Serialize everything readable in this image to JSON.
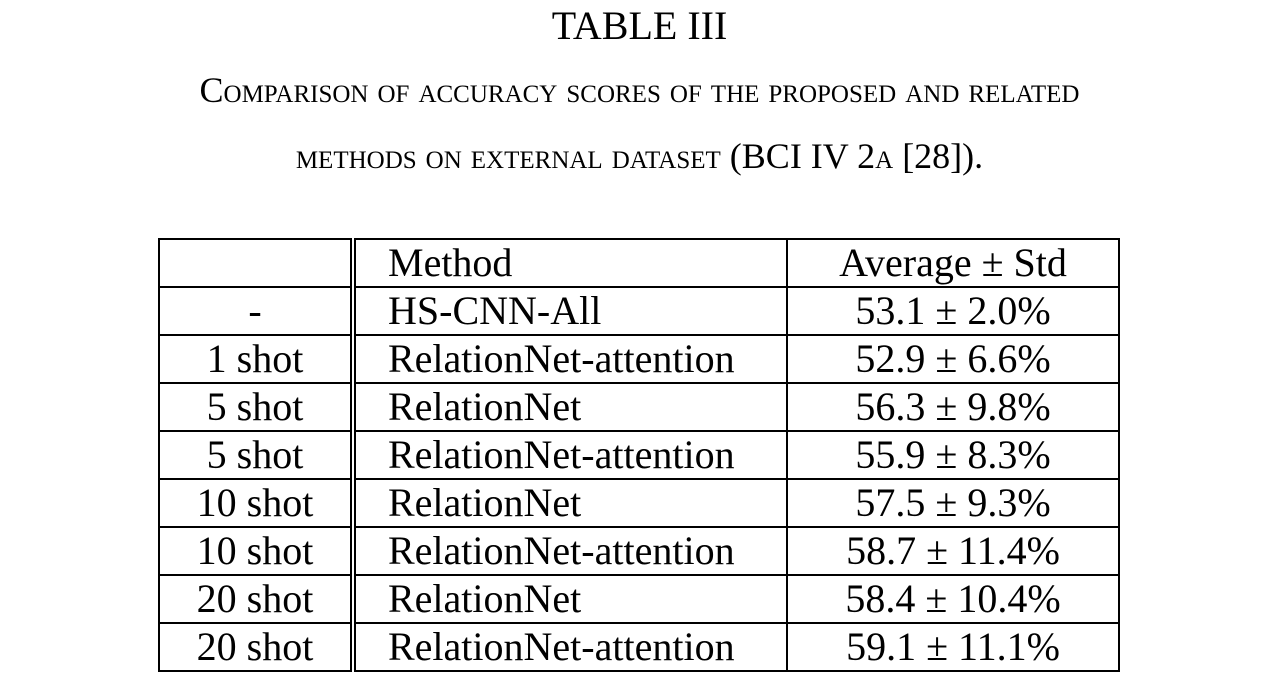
{
  "table_number": "TABLE III",
  "caption": {
    "line1": "Comparison of accuracy scores of the proposed and related",
    "line2": "methods on external dataset (BCI IV 2a [28])."
  },
  "columns": {
    "shot": "",
    "method": "Method",
    "score": "Average ± Std"
  },
  "rows": [
    {
      "shot": "-",
      "method": "HS-CNN-All",
      "score": "53.1 ± 2.0%"
    },
    {
      "shot": "1 shot",
      "method": "RelationNet-attention",
      "score": "52.9 ± 6.6%"
    },
    {
      "shot": "5 shot",
      "method": "RelationNet",
      "score": "56.3 ± 9.8%"
    },
    {
      "shot": "5 shot",
      "method": "RelationNet-attention",
      "score": "55.9 ± 8.3%"
    },
    {
      "shot": "10 shot",
      "method": "RelationNet",
      "score": "57.5 ± 9.3%"
    },
    {
      "shot": "10 shot",
      "method": "RelationNet-attention",
      "score": "58.7 ± 11.4%"
    },
    {
      "shot": "20 shot",
      "method": "RelationNet",
      "score": "58.4 ± 10.4%"
    },
    {
      "shot": "20 shot",
      "method": "RelationNet-attention",
      "score": "59.1 ± 11.1%"
    }
  ]
}
